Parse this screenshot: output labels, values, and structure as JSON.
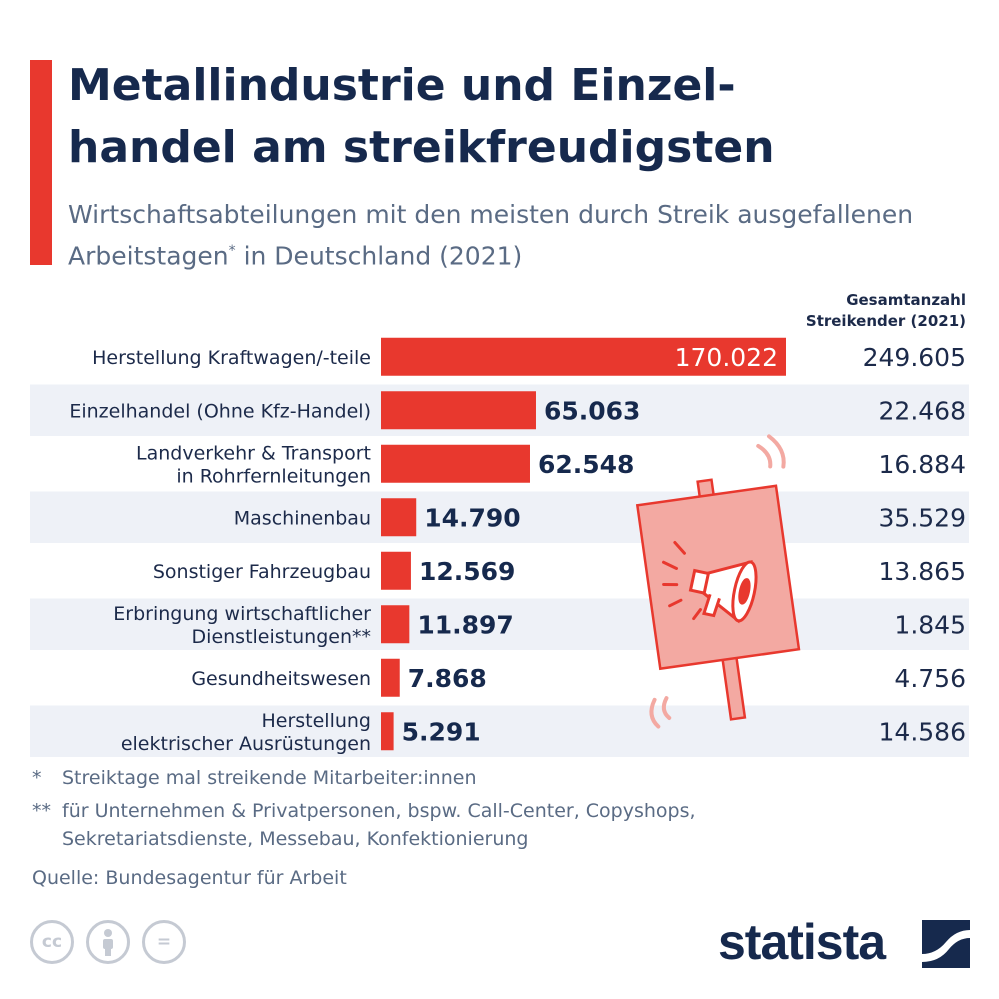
{
  "header": {
    "title": "Metallindustrie und Einzel-\nhandel am streikfreudigsten",
    "subtitle_main": "Wirtschaftsabteilungen mit den meisten durch Streik ausgefallenen Arbeitstagen",
    "subtitle_mark": "*",
    "subtitle_tail": " in Deutschland (2021)"
  },
  "chart_data": {
    "type": "bar",
    "orientation": "horizontal",
    "categories": [
      "Herstellung Kraftwagen/-teile",
      "Einzelhandel (Ohne Kfz-Handel)",
      "Landverkehr & Transport\nin Rohrfernleitungen",
      "Maschinenbau",
      "Sonstiger Fahrzeugbau",
      "Erbringung wirtschaftlicher\nDienstleistungen**",
      "Gesundheitswesen",
      "Herstellung\nelektrischer Ausrüstungen"
    ],
    "values": [
      170022,
      65063,
      62548,
      14790,
      12569,
      11897,
      7868,
      5291
    ],
    "value_labels": [
      "170.022",
      "65.063",
      "62.548",
      "14.790",
      "12.569",
      "11.897",
      "7.868",
      "5.291"
    ],
    "secondary_column": {
      "header": "Gesamtanzahl\nStreikender (2021)",
      "values": [
        249605,
        22468,
        16884,
        35529,
        13865,
        1845,
        4756,
        14586
      ],
      "labels": [
        "249.605",
        "22.468",
        "16.884",
        "35.529",
        "13.865",
        "1.845",
        "4.756",
        "14.586"
      ]
    },
    "xlim": [
      0,
      170022
    ],
    "bar_color": "#e8382e",
    "stripe_color": "#eef1f7"
  },
  "footnotes": [
    {
      "mark": "*",
      "text": "Streiktage mal streikende Mitarbeiter:innen"
    },
    {
      "mark": "**",
      "text": "für Unternehmen & Privatpersonen, bspw. Call-Center, Copyshops,",
      "continuation": "Sekretariatsdienste, Messebau, Konfektionierung"
    }
  ],
  "source": "Quelle: Bundesagentur für Arbeit",
  "branding": {
    "logo_text": "statista",
    "license_icons": [
      "cc-icon",
      "attribution-icon",
      "no-derivatives-icon"
    ],
    "cc_label": "cc",
    "nd_label": "="
  },
  "colors": {
    "accent": "#e8382e",
    "navy": "#16294d",
    "muted": "#5a6b84"
  }
}
